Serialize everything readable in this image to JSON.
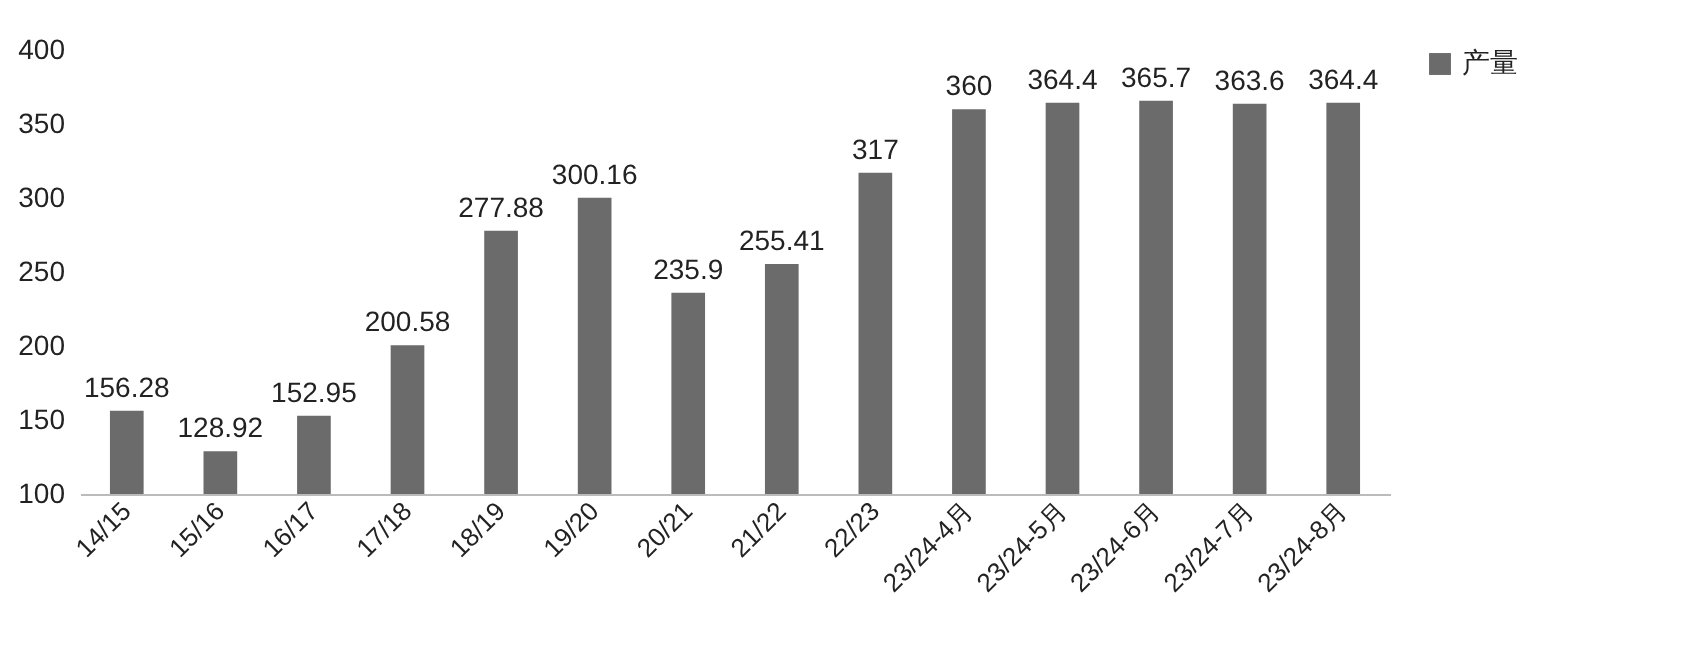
{
  "chart_data": {
    "type": "bar",
    "categories": [
      "14/15",
      "15/16",
      "16/17",
      "17/18",
      "18/19",
      "19/20",
      "20/21",
      "21/22",
      "22/23",
      "23/24-4月",
      "23/24-5月",
      "23/24-6月",
      "23/24-7月",
      "23/24-8月"
    ],
    "series": [
      {
        "name": "产量",
        "color": "#6b6b6b",
        "values": [
          156.28,
          128.92,
          152.95,
          200.58,
          277.88,
          300.16,
          235.9,
          255.41,
          317,
          360,
          364.4,
          365.7,
          363.6,
          364.4
        ]
      }
    ],
    "ylim": [
      100,
      400
    ],
    "yticks": [
      100,
      150,
      200,
      250,
      300,
      350,
      400
    ],
    "data_labels": true,
    "legend": "right"
  }
}
